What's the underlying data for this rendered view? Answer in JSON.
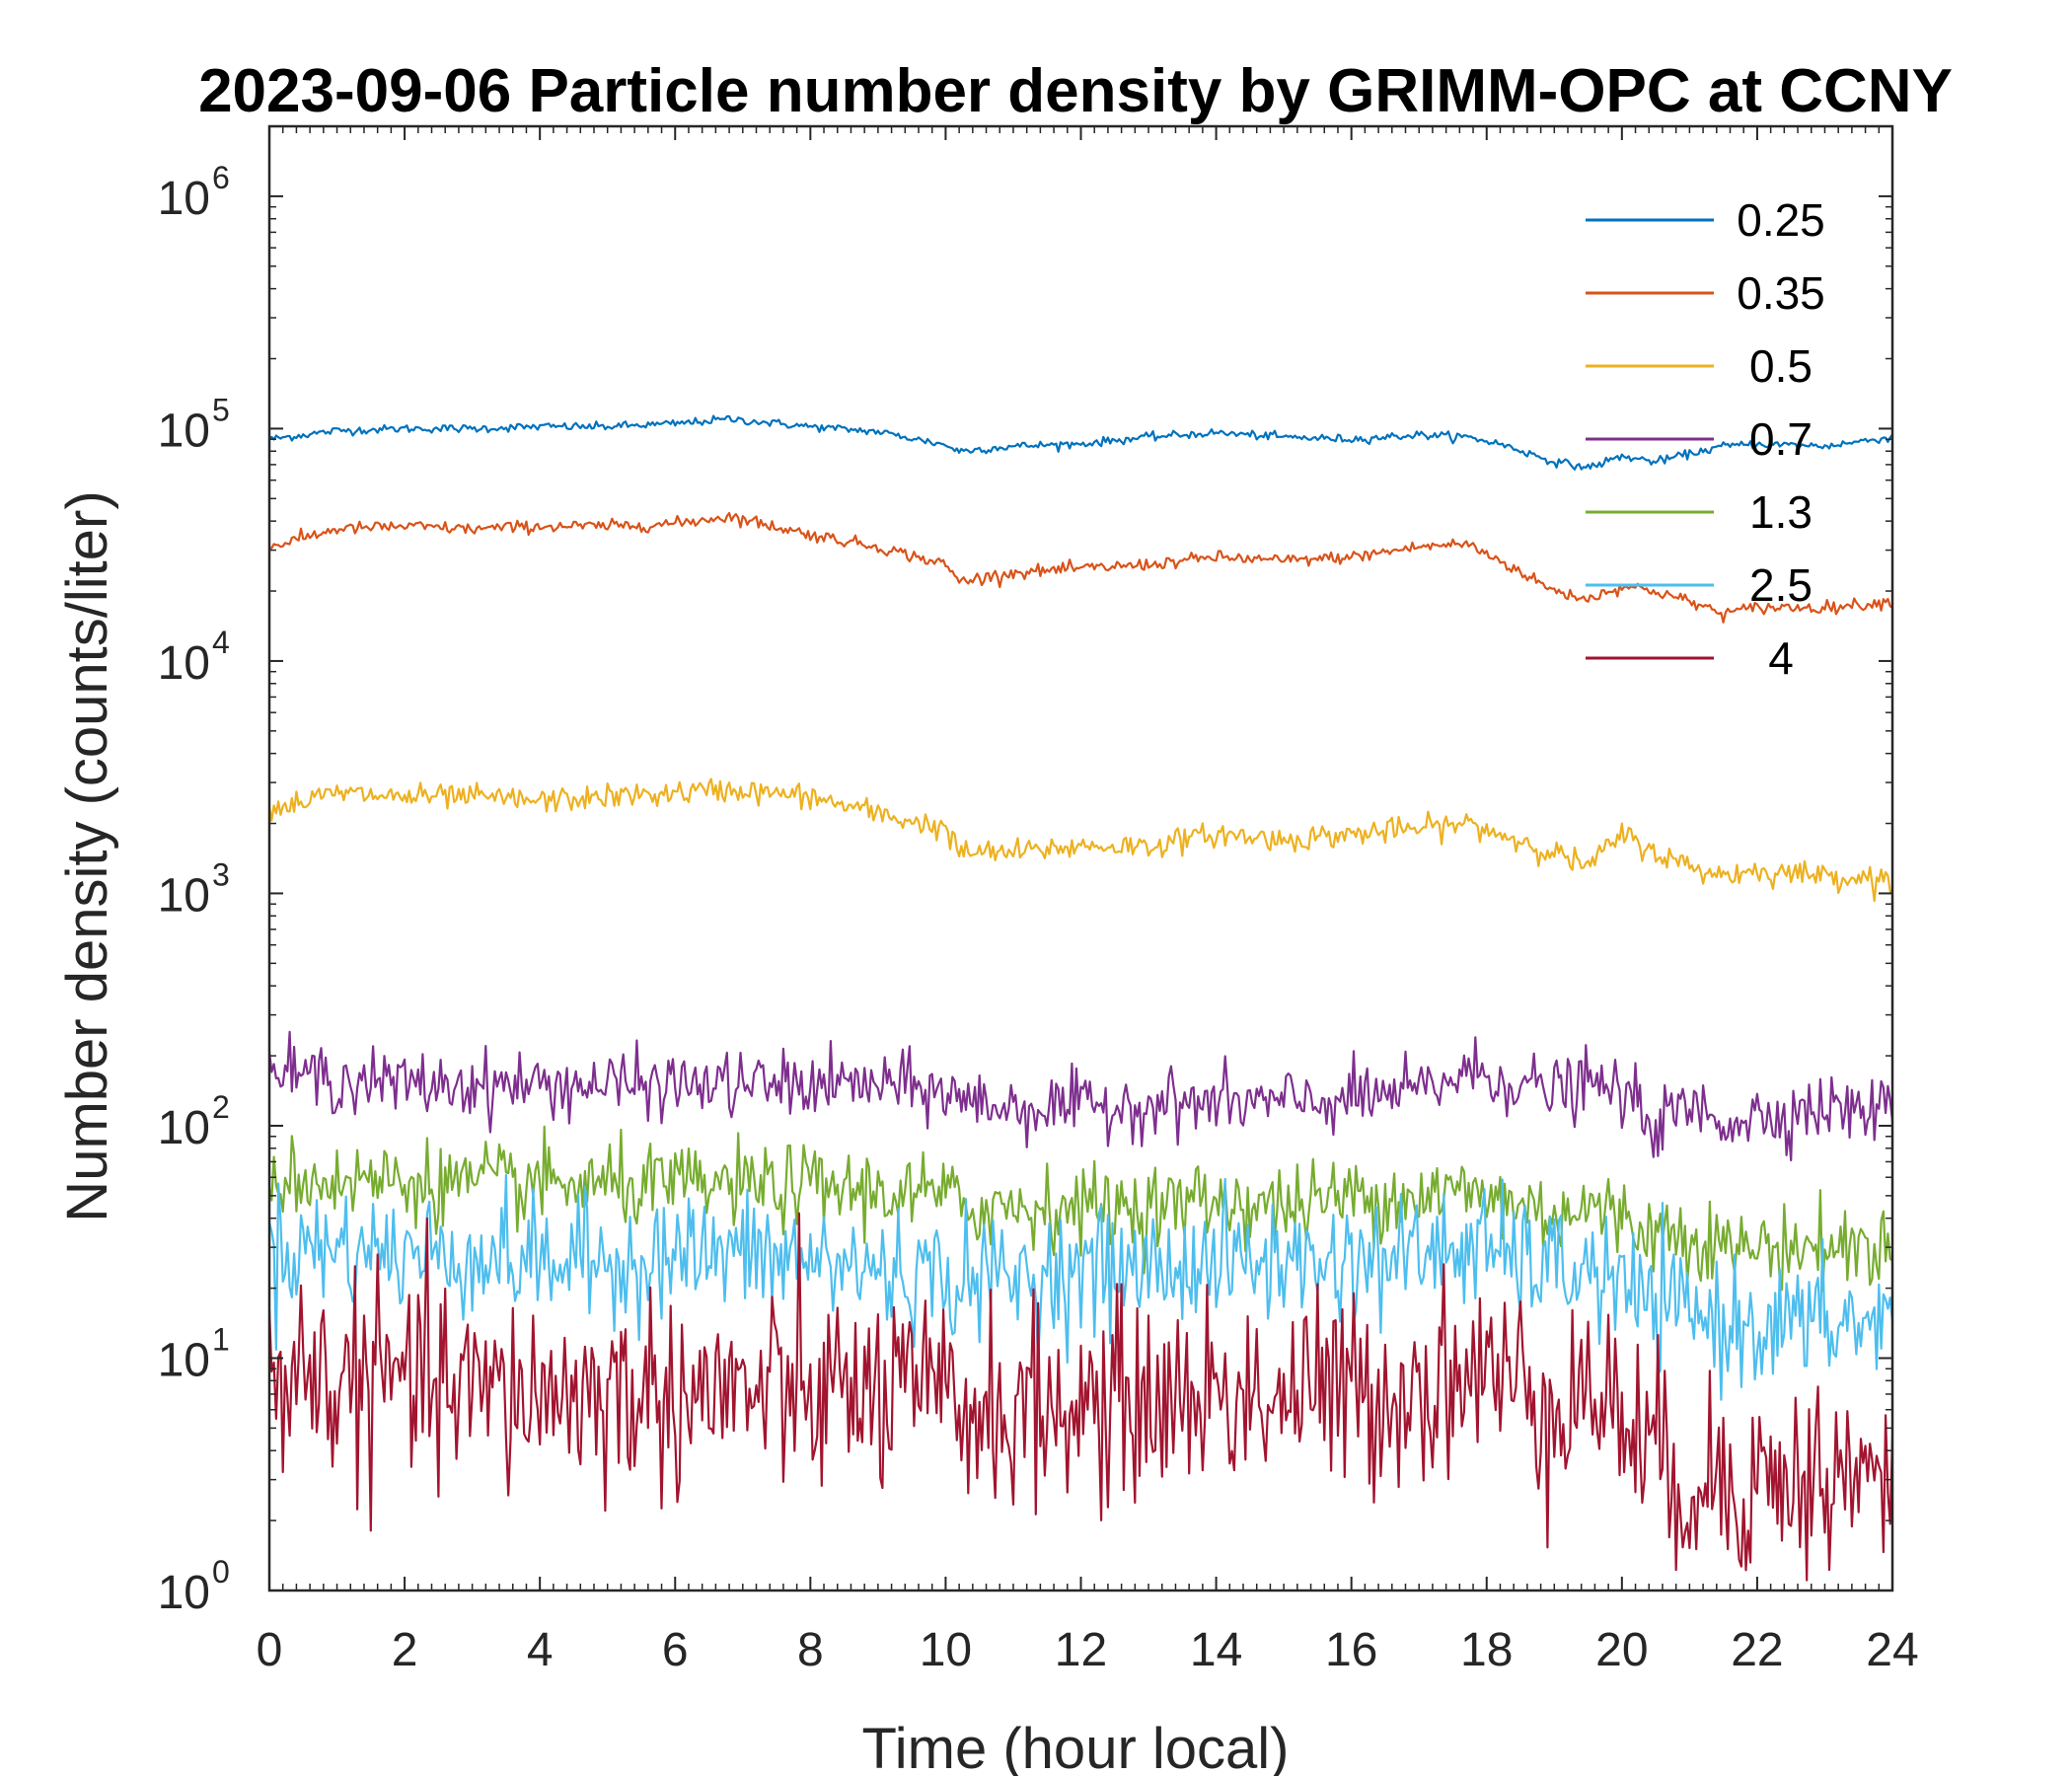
{
  "chart_data": {
    "type": "line",
    "title": "2023-09-06 Particle number density by GRIMM-OPC at CCNY",
    "xlabel": "Time (hour local)",
    "ylabel": "Number density (counts/liter)",
    "xlim": [
      0,
      24
    ],
    "ylim": [
      1,
      2000000
    ],
    "yscale": "log",
    "x_ticks": [
      0,
      2,
      4,
      6,
      8,
      10,
      12,
      14,
      16,
      18,
      20,
      22,
      24
    ],
    "x_tick_labels": [
      "0",
      "2",
      "4",
      "6",
      "8",
      "10",
      "12",
      "14",
      "16",
      "18",
      "20",
      "22",
      "24"
    ],
    "y_ticks": [
      {
        "value": 1,
        "base": "10",
        "exp": "0"
      },
      {
        "value": 10,
        "base": "10",
        "exp": "1"
      },
      {
        "value": 100,
        "base": "10",
        "exp": "2"
      },
      {
        "value": 1000,
        "base": "10",
        "exp": "3"
      },
      {
        "value": 10000,
        "base": "10",
        "exp": "4"
      },
      {
        "value": 100000,
        "base": "10",
        "exp": "5"
      },
      {
        "value": 1000000,
        "base": "10",
        "exp": "6"
      }
    ],
    "legend_position": "top-right",
    "grid": false,
    "x": [
      0,
      1,
      2,
      3,
      4,
      5,
      6,
      6.8,
      8,
      9,
      10,
      10.2,
      11,
      12,
      13,
      14,
      15,
      16,
      17,
      17.7,
      18.2,
      19,
      19.5,
      20,
      20.5,
      21,
      21.5,
      22,
      23,
      24
    ],
    "series": [
      {
        "name": "0.25",
        "color": "#0072BD",
        "noise": 0.02,
        "values": [
          90000,
          98000,
          100000,
          100000,
          102000,
          102000,
          105000,
          110000,
          102000,
          97000,
          85000,
          80000,
          84000,
          86000,
          92000,
          96000,
          92000,
          90000,
          94000,
          92000,
          86000,
          72000,
          68000,
          76000,
          72000,
          78000,
          84000,
          86000,
          84000,
          92000
        ]
      },
      {
        "name": "0.35",
        "color": "#D95319",
        "noise": 0.03,
        "values": [
          31000,
          37000,
          38000,
          37000,
          38000,
          38000,
          39000,
          42000,
          35000,
          31000,
          26000,
          22000,
          24000,
          25000,
          26000,
          28000,
          27000,
          28000,
          31000,
          32000,
          27000,
          20000,
          18500,
          21000,
          20000,
          18000,
          16000,
          17000,
          17000,
          18000
        ]
      },
      {
        "name": "0.5",
        "color": "#EDB120",
        "noise": 0.06,
        "values": [
          2300,
          2700,
          2600,
          2600,
          2500,
          2600,
          2700,
          2800,
          2600,
          2200,
          1900,
          1500,
          1500,
          1600,
          1600,
          1800,
          1700,
          1800,
          1900,
          2000,
          1800,
          1500,
          1300,
          1800,
          1500,
          1300,
          1200,
          1250,
          1200,
          1150
        ]
      },
      {
        "name": "0.7",
        "color": "#7E2F8E",
        "noise": 0.16,
        "values": [
          170,
          160,
          150,
          150,
          150,
          150,
          150,
          150,
          150,
          150,
          140,
          130,
          120,
          120,
          125,
          125,
          125,
          130,
          140,
          170,
          160,
          140,
          150,
          140,
          100,
          120,
          105,
          110,
          120,
          115
        ]
      },
      {
        "name": "1.3",
        "color": "#77AC30",
        "noise": 0.2,
        "values": [
          60,
          58,
          58,
          56,
          56,
          55,
          55,
          55,
          55,
          52,
          50,
          45,
          45,
          45,
          45,
          48,
          45,
          50,
          50,
          52,
          48,
          42,
          45,
          40,
          35,
          35,
          30,
          30,
          30,
          30
        ]
      },
      {
        "name": "2.5",
        "color": "#4DBEEE",
        "noise": 0.3,
        "values": [
          30,
          30,
          28,
          28,
          26,
          26,
          28,
          28,
          26,
          24,
          22,
          22,
          22,
          24,
          24,
          26,
          26,
          26,
          28,
          30,
          28,
          24,
          24,
          20,
          16,
          16,
          14,
          14,
          14,
          14
        ]
      },
      {
        "name": "4",
        "color": "#A2142F",
        "noise": 0.5,
        "values": [
          9,
          8,
          8,
          7,
          7,
          7,
          7,
          7,
          7,
          7,
          6.5,
          6,
          6,
          6,
          6.5,
          7,
          7,
          7,
          7.5,
          9,
          8,
          7,
          7,
          6,
          3.5,
          3,
          3,
          3,
          3,
          3
        ]
      }
    ]
  }
}
